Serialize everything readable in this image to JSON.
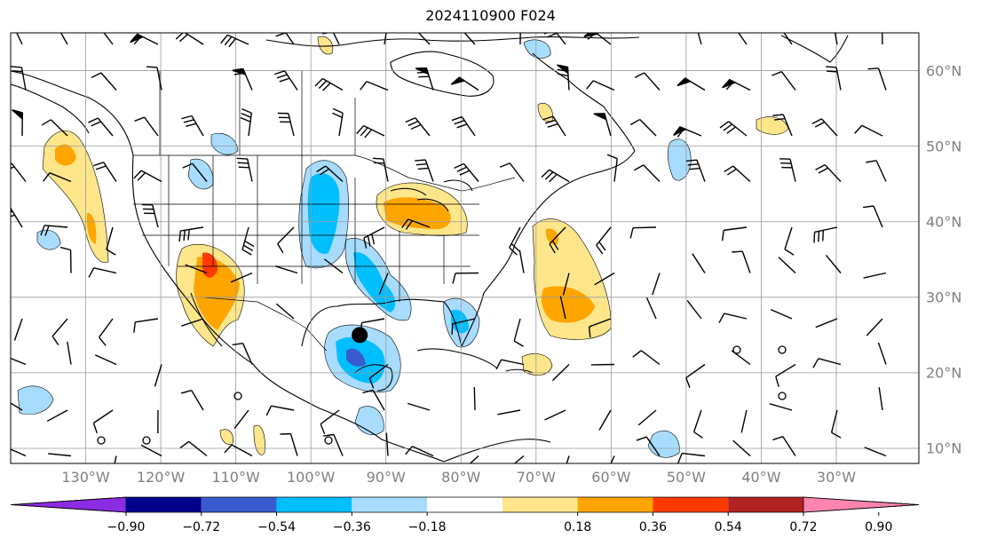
{
  "title": "2024110900 F024",
  "lon_labels": [
    "130°W",
    "120°W",
    "110°W",
    "100°W",
    "90°W",
    "80°W",
    "70°W",
    "60°W",
    "50°W",
    "40°W",
    "30°W"
  ],
  "lat_labels": [
    "60°N",
    "50°N",
    "40°N",
    "30°N",
    "20°N",
    "10°N"
  ],
  "colorbar": {
    "ticks": [
      "−0.90",
      "−0.72",
      "−0.54",
      "−0.36",
      "−0.18",
      "0.18",
      "0.36",
      "0.54",
      "0.72",
      "0.90"
    ],
    "colors": [
      "#8b2be2",
      "#00008b",
      "#3a5bd0",
      "#00bfff",
      "#a8dcff",
      "#ffffff",
      "#ffe68a",
      "#ffa500",
      "#ff3a00",
      "#b22222",
      "#ff85b0"
    ]
  },
  "map": {
    "extent": {
      "lon_min": -140,
      "lon_max": -19,
      "lat_min": 8,
      "lat_max": 65
    },
    "gridline_color": "#9a9a9a",
    "marker": {
      "lon": -93.5,
      "lat": 25.0,
      "color": "#000000"
    }
  }
}
